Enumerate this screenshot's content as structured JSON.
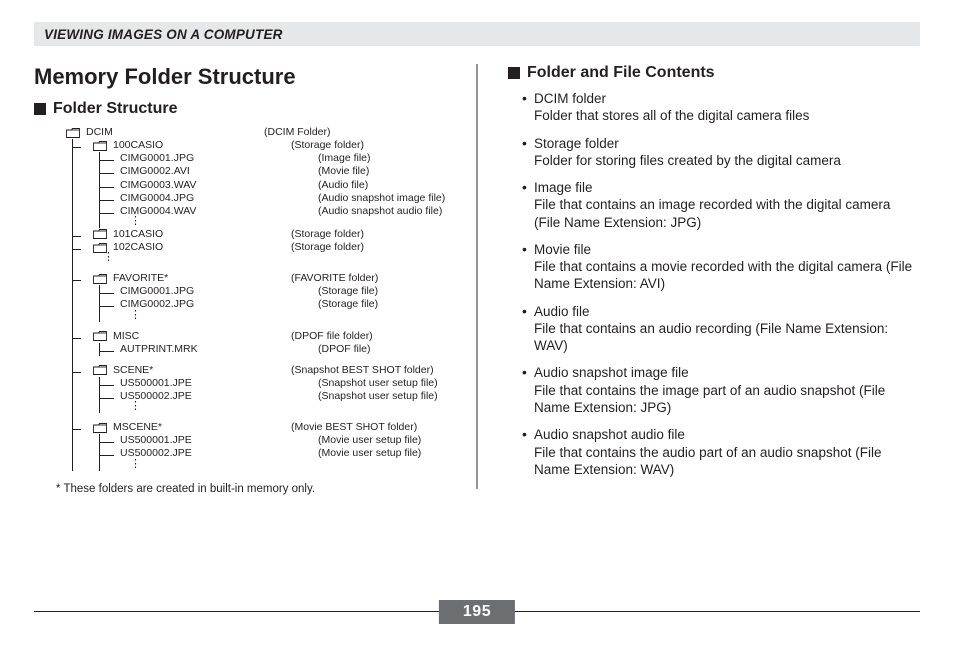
{
  "colors": {
    "text": "#231f20",
    "band": "#e6e7e8",
    "badge": "#6d6e71",
    "divider": "#959595"
  },
  "header": "VIEWING IMAGES ON A COMPUTER",
  "page_number": "195",
  "left": {
    "title": "Memory Folder Structure",
    "subheading": "Folder Structure",
    "footnote": "* These folders are created in built-in memory only.",
    "tree": [
      {
        "type": "folder",
        "label": "DCIM",
        "paren": "(DCIM Folder)",
        "children": [
          {
            "type": "folder",
            "label": "100CASIO",
            "paren": "(Storage folder)",
            "children": [
              {
                "type": "file",
                "label": "CIMG0001.JPG",
                "paren": "(Image file)"
              },
              {
                "type": "file",
                "label": "CIMG0002.AVI",
                "paren": "(Movie file)"
              },
              {
                "type": "file",
                "label": "CIMG0003.WAV",
                "paren": "(Audio file)"
              },
              {
                "type": "file",
                "label": "CIMG0004.JPG",
                "paren": "(Audio snapshot image file)"
              },
              {
                "type": "file",
                "label": "CIMG0004.WAV",
                "paren": "(Audio snapshot audio file)"
              },
              {
                "type": "ellipsis"
              }
            ]
          },
          {
            "type": "folder",
            "label": "101CASIO",
            "paren": "(Storage folder)"
          },
          {
            "type": "folder",
            "label": "102CASIO",
            "paren": "(Storage folder)"
          },
          {
            "type": "ellipsis"
          },
          {
            "type": "spacer"
          },
          {
            "type": "folder",
            "label": "FAVORITE*",
            "paren": "(FAVORITE folder)",
            "children": [
              {
                "type": "file",
                "label": "CIMG0001.JPG",
                "paren": "(Storage file)"
              },
              {
                "type": "file",
                "label": "CIMG0002.JPG",
                "paren": "(Storage file)"
              },
              {
                "type": "ellipsis"
              }
            ]
          },
          {
            "type": "spacer"
          },
          {
            "type": "folder",
            "label": "MISC",
            "paren": "(DPOF file folder)",
            "children": [
              {
                "type": "file",
                "label": "AUTPRINT.MRK",
                "paren": "(DPOF file)"
              }
            ]
          },
          {
            "type": "spacer"
          },
          {
            "type": "folder",
            "label": "SCENE*",
            "paren": "(Snapshot BEST SHOT folder)",
            "children": [
              {
                "type": "file",
                "label": "US500001.JPE",
                "paren": "(Snapshot user setup file)"
              },
              {
                "type": "file",
                "label": "US500002.JPE",
                "paren": "(Snapshot user setup file)"
              },
              {
                "type": "ellipsis"
              }
            ]
          },
          {
            "type": "spacer"
          },
          {
            "type": "folder",
            "label": "MSCENE*",
            "paren": "(Movie BEST SHOT folder)",
            "children": [
              {
                "type": "file",
                "label": "US500001.JPE",
                "paren": "(Movie user setup file)"
              },
              {
                "type": "file",
                "label": "US500002.JPE",
                "paren": "(Movie user setup file)"
              },
              {
                "type": "ellipsis"
              }
            ]
          }
        ]
      }
    ]
  },
  "right": {
    "subheading": "Folder and File Contents",
    "items": [
      {
        "term": "DCIM folder",
        "desc": "Folder that stores all of the digital camera files"
      },
      {
        "term": "Storage folder",
        "desc": "Folder for storing files created by the digital camera"
      },
      {
        "term": "Image file",
        "desc": "File that contains an image recorded with the digital camera (File Name Extension: JPG)"
      },
      {
        "term": "Movie file",
        "desc": "File that contains a movie recorded with the digital camera (File Name Extension: AVI)"
      },
      {
        "term": "Audio file",
        "desc": "File that contains an audio recording (File Name Extension: WAV)"
      },
      {
        "term": "Audio snapshot image file",
        "desc": "File that contains the image part of an audio snapshot (File Name Extension: JPG)"
      },
      {
        "term": "Audio snapshot audio file",
        "desc": "File that contains the audio part of an audio snapshot (File Name Extension: WAV)"
      }
    ]
  }
}
